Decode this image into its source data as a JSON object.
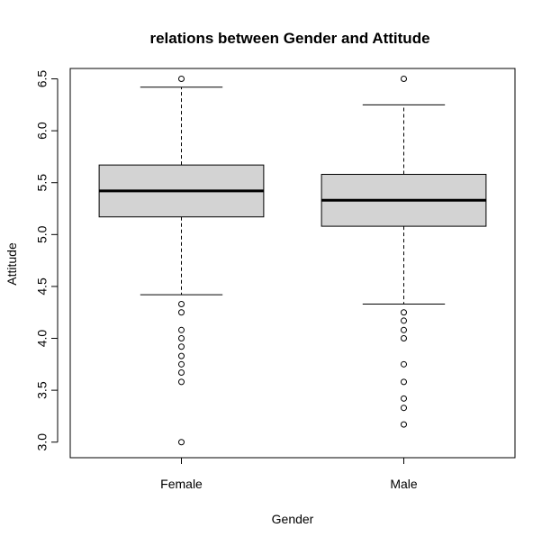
{
  "chart_data": {
    "type": "boxplot",
    "title": "relations between Gender and Attitude",
    "xlabel": "Gender",
    "ylabel": "Attitude",
    "categories": [
      "Female",
      "Male"
    ],
    "ylim": [
      2.85,
      6.6
    ],
    "yticks": [
      "3.0",
      "3.5",
      "4.0",
      "4.5",
      "5.0",
      "5.5",
      "6.0",
      "6.5"
    ],
    "box_color": "#d3d3d3",
    "boxes": [
      {
        "name": "Female",
        "lower_whisker": 4.42,
        "q1": 5.17,
        "median": 5.42,
        "q3": 5.67,
        "upper_whisker": 6.42,
        "outliers": [
          6.5,
          4.33,
          4.25,
          4.08,
          4.0,
          3.92,
          3.83,
          3.75,
          3.67,
          3.58,
          3.0
        ]
      },
      {
        "name": "Male",
        "lower_whisker": 4.33,
        "q1": 5.08,
        "median": 5.33,
        "q3": 5.58,
        "upper_whisker": 6.25,
        "outliers": [
          6.5,
          4.25,
          4.17,
          4.08,
          4.0,
          3.75,
          3.58,
          3.42,
          3.33,
          3.17
        ]
      }
    ]
  }
}
